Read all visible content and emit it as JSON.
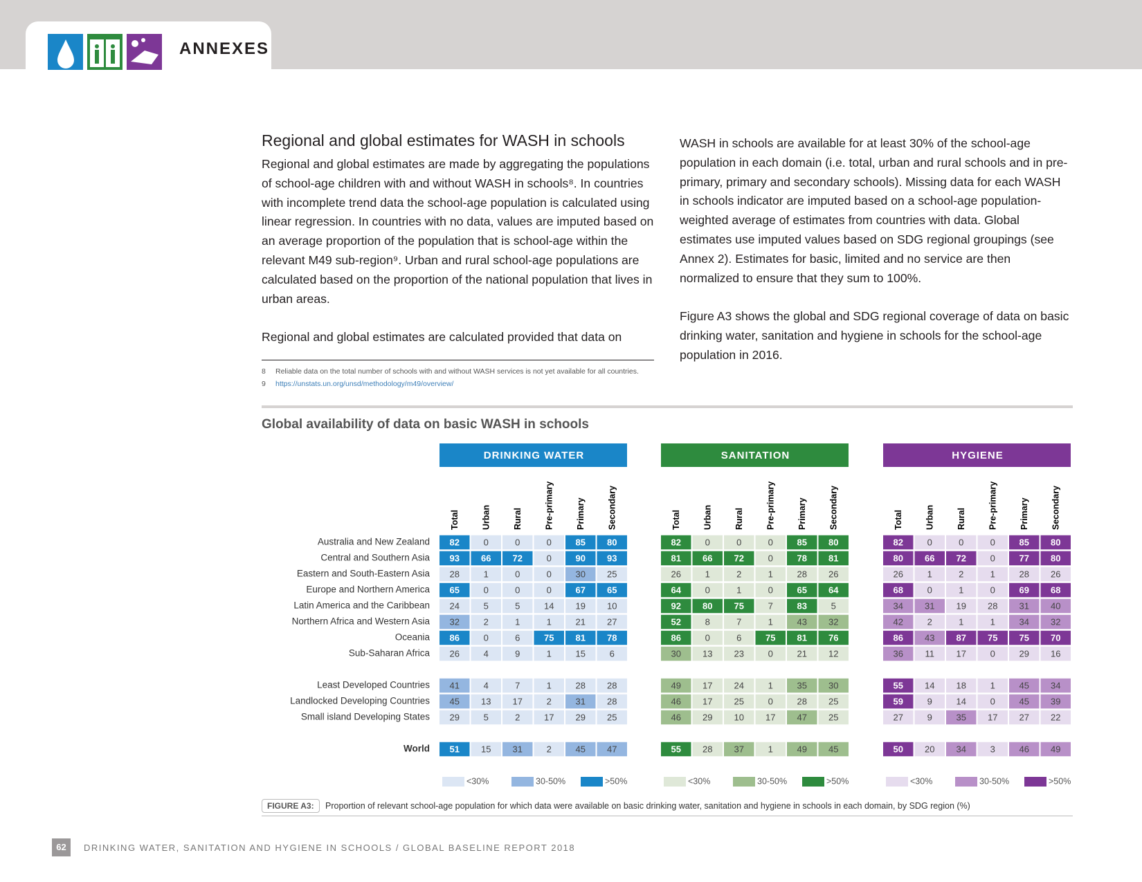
{
  "header": {
    "title": "ANNEXES"
  },
  "section": {
    "title": "Regional and global estimates for WASH in schools",
    "left_paragraphs": [
      "Regional and global estimates are made by aggregating the populations of school-age children with and without WASH in schools⁸. In countries with incomplete trend data the school-age population is calculated using linear regression. In countries with no data, values are imputed based on an average proportion of the population that is school-age within the relevant M49 sub-region⁹. Urban and rural school-age populations are calculated based on the proportion of the national population that lives in urban areas.",
      "Regional and global estimates are calculated provided that data on"
    ],
    "right_paragraphs": [
      "WASH in schools are available for at least 30% of the school-age population in each domain (i.e. total, urban and rural schools and in pre-primary, primary and secondary schools). Missing data for each WASH in schools indicator are imputed based on a school-age population-weighted average of estimates from countries with data. Global estimates use imputed values based on SDG regional groupings (see Annex 2). Estimates for basic, limited and no service are then normalized to ensure that they sum to 100%.",
      "Figure A3 shows the global and SDG regional coverage of data on basic drinking water, sanitation and hygiene in schools for the school-age population in 2016."
    ],
    "footnotes": [
      {
        "number": "8",
        "text": "Reliable data on the total number of schools with and without WASH services is not yet available for all countries."
      },
      {
        "number": "9",
        "text": "https://unstats.un.org/unsd/methodology/m49/overview/"
      }
    ]
  },
  "table": {
    "title": "Global availability of data on basic WASH in schools",
    "indicators": [
      {
        "name": "DRINKING WATER",
        "colors": [
          "#dce6f4",
          "#94b6e0",
          "#1a86c8"
        ]
      },
      {
        "name": "SANITATION",
        "colors": [
          "#dfe8d8",
          "#9ebe8e",
          "#2e8b3e"
        ]
      },
      {
        "name": "HYGIENE",
        "colors": [
          "#e6dcee",
          "#b890c8",
          "#7d3796"
        ]
      }
    ],
    "columns": [
      "Total",
      "Urban",
      "Rural",
      "Pre-primary",
      "Primary",
      "Secondary"
    ],
    "thresholds": [
      30,
      50
    ],
    "legend": [
      "<30%",
      "30-50%",
      ">50%"
    ],
    "row_groups": [
      [
        {
          "label": "Australia and New Zealand",
          "values": [
            [
              82,
              0,
              0,
              0,
              85,
              80
            ],
            [
              82,
              0,
              0,
              0,
              85,
              80
            ],
            [
              82,
              0,
              0,
              0,
              85,
              80
            ]
          ]
        },
        {
          "label": "Central and Southern Asia",
          "values": [
            [
              93,
              66,
              72,
              0,
              90,
              93
            ],
            [
              81,
              66,
              72,
              0,
              78,
              81
            ],
            [
              80,
              66,
              72,
              0,
              77,
              80
            ]
          ]
        },
        {
          "label": "Eastern and South-Eastern Asia",
          "values": [
            [
              28,
              1,
              0,
              0,
              30,
              25
            ],
            [
              26,
              1,
              2,
              1,
              28,
              26
            ],
            [
              26,
              1,
              2,
              1,
              28,
              26
            ]
          ]
        },
        {
          "label": "Europe and Northern America",
          "values": [
            [
              65,
              0,
              0,
              0,
              67,
              65
            ],
            [
              64,
              0,
              1,
              0,
              65,
              64
            ],
            [
              68,
              0,
              1,
              0,
              69,
              68
            ]
          ]
        },
        {
          "label": "Latin America and the Caribbean",
          "values": [
            [
              24,
              5,
              5,
              14,
              19,
              10
            ],
            [
              92,
              80,
              75,
              7,
              83,
              5
            ],
            [
              34,
              31,
              19,
              28,
              31,
              40
            ]
          ]
        },
        {
          "label": "Northern Africa and Western Asia",
          "values": [
            [
              32,
              2,
              1,
              1,
              21,
              27
            ],
            [
              52,
              8,
              7,
              1,
              43,
              32
            ],
            [
              42,
              2,
              1,
              1,
              34,
              32
            ]
          ]
        },
        {
          "label": "Oceania",
          "values": [
            [
              86,
              0,
              6,
              75,
              81,
              78
            ],
            [
              86,
              0,
              6,
              75,
              81,
              76
            ],
            [
              86,
              43,
              87,
              75,
              75,
              70
            ]
          ]
        },
        {
          "label": "Sub-Saharan Africa",
          "values": [
            [
              26,
              4,
              9,
              1,
              15,
              6
            ],
            [
              30,
              13,
              23,
              0,
              21,
              12
            ],
            [
              36,
              11,
              17,
              0,
              29,
              16
            ]
          ]
        }
      ],
      [
        {
          "label": "Least Developed Countries",
          "values": [
            [
              41,
              4,
              7,
              1,
              28,
              28
            ],
            [
              49,
              17,
              24,
              1,
              35,
              30
            ],
            [
              55,
              14,
              18,
              1,
              45,
              34
            ]
          ]
        },
        {
          "label": "Landlocked Developing Countries",
          "values": [
            [
              45,
              13,
              17,
              2,
              31,
              28
            ],
            [
              46,
              17,
              25,
              0,
              28,
              25
            ],
            [
              59,
              9,
              14,
              0,
              45,
              39
            ]
          ]
        },
        {
          "label": "Small island Developing States",
          "values": [
            [
              29,
              5,
              2,
              17,
              29,
              25
            ],
            [
              46,
              29,
              10,
              17,
              47,
              25
            ],
            [
              27,
              9,
              35,
              17,
              27,
              22
            ]
          ]
        }
      ],
      [
        {
          "label": "World",
          "values": [
            [
              51,
              15,
              31,
              2,
              45,
              47
            ],
            [
              55,
              28,
              37,
              1,
              49,
              45
            ],
            [
              50,
              20,
              34,
              3,
              46,
              49
            ]
          ]
        }
      ]
    ],
    "caption": {
      "label": "FIGURE A3:",
      "text": "Proportion of relevant school-age population for which data were available on basic drinking water, sanitation and hygiene in schools in each domain, by SDG region (%)"
    }
  },
  "footer": {
    "page": "62",
    "text": "DRINKING WATER, SANITATION AND HYGIENE IN SCHOOLS / GLOBAL BASELINE REPORT 2018"
  }
}
